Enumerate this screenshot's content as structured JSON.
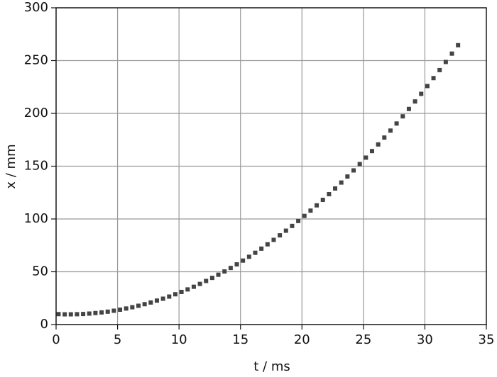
{
  "chart_data": {
    "type": "scatter",
    "x_label": "t / ms",
    "y_label": "x / mm",
    "xlim": [
      0,
      35
    ],
    "xticks": [
      0,
      5,
      10,
      15,
      20,
      25,
      30,
      35
    ],
    "ylim": [
      0,
      300
    ],
    "yticks": [
      0,
      50,
      100,
      150,
      200,
      250,
      300
    ],
    "grid": true,
    "color": "#444444",
    "x": [
      0.2,
      0.7,
      1.2,
      1.7,
      2.2,
      2.7,
      3.2,
      3.7,
      4.2,
      4.7,
      5.2,
      5.7,
      6.2,
      6.7,
      7.2,
      7.7,
      8.2,
      8.7,
      9.2,
      9.7,
      10.2,
      10.7,
      11.2,
      11.7,
      12.2,
      12.7,
      13.2,
      13.7,
      14.2,
      14.7,
      15.2,
      15.7,
      16.2,
      16.7,
      17.2,
      17.7,
      18.2,
      18.7,
      19.2,
      19.7,
      20.2,
      20.7,
      21.2,
      21.7,
      22.2,
      22.7,
      23.2,
      23.7,
      24.2,
      24.7,
      25.2,
      25.7,
      26.2,
      26.7,
      27.2,
      27.7,
      28.2,
      28.7,
      29.2,
      29.7,
      30.2,
      30.7,
      31.2,
      31.7,
      32.2,
      32.7
    ],
    "values": [
      9.9,
      9.7,
      9.7,
      9.8,
      10.0,
      10.4,
      10.9,
      11.5,
      12.2,
      13.1,
      14.1,
      15.2,
      16.4,
      17.8,
      19.3,
      20.9,
      22.7,
      24.5,
      26.5,
      28.7,
      30.9,
      33.3,
      35.8,
      38.5,
      41.3,
      44.2,
      47.2,
      50.3,
      53.6,
      57.0,
      60.6,
      64.2,
      68.0,
      71.9,
      76.0,
      80.2,
      84.5,
      88.9,
      93.4,
      98.1,
      102.9,
      107.9,
      112.9,
      118.1,
      123.5,
      128.9,
      134.5,
      140.2,
      146.0,
      152.0,
      158.1,
      164.3,
      170.6,
      177.1,
      183.7,
      190.4,
      197.2,
      204.2,
      211.3,
      218.5,
      225.9,
      233.4,
      241.0,
      248.7,
      256.6,
      264.6
    ]
  }
}
